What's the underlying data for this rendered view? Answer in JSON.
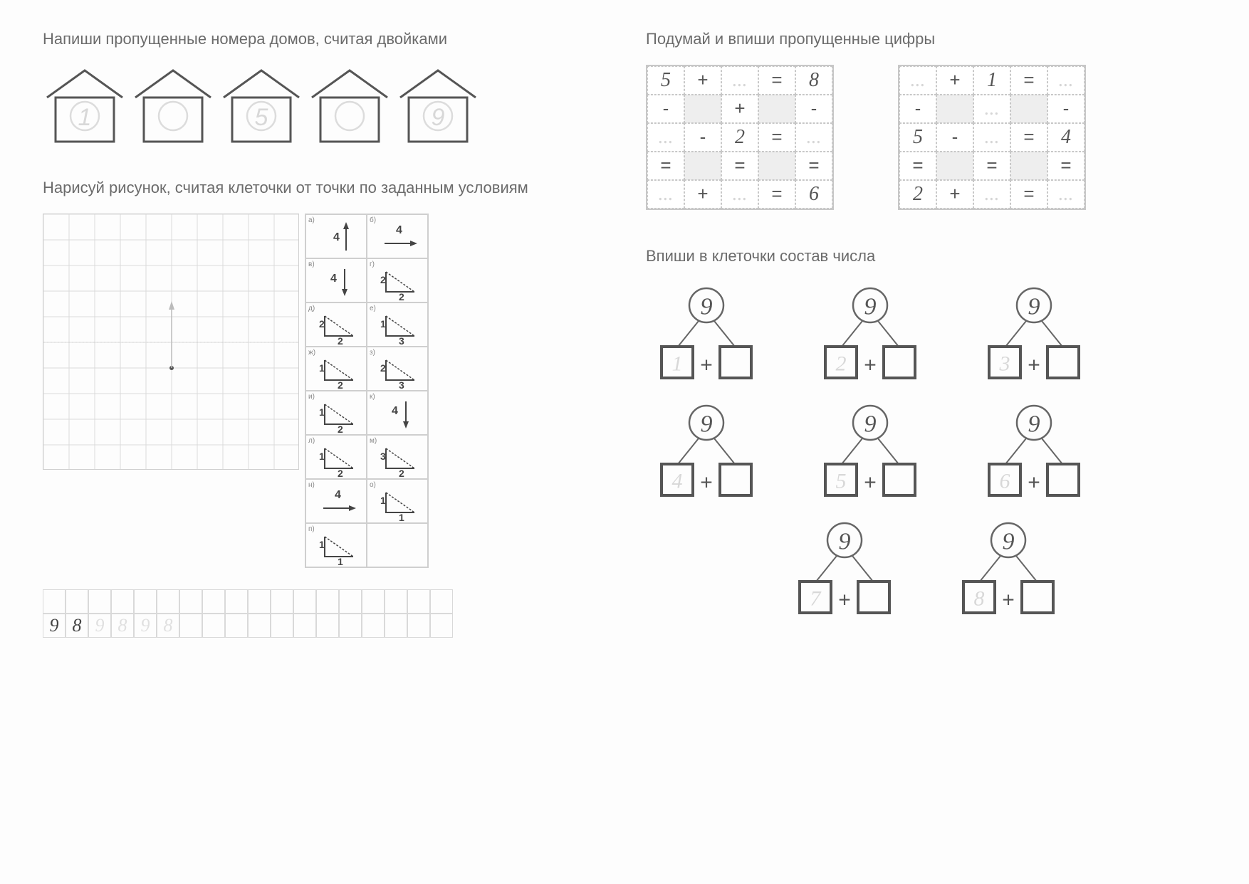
{
  "colors": {
    "text_gray": "#6b6b6b",
    "line_gray": "#777777",
    "light_line": "#cfcfcf",
    "faint_num": "#d8d8d8",
    "dark_num": "#444444",
    "cell_gray": "#eeeeee"
  },
  "left": {
    "task1_title": "Напиши пропущенные номера домов, считая двойками",
    "houses": [
      {
        "num": "1",
        "show": true
      },
      {
        "num": "",
        "show": false
      },
      {
        "num": "5",
        "show": true
      },
      {
        "num": "",
        "show": false
      },
      {
        "num": "9",
        "show": true
      }
    ],
    "task2_title": "Нарисуй рисунок, считая клеточки от точки по заданным условиям",
    "direction_cells": [
      {
        "lbl": "а)",
        "draw": "arrow_up",
        "n": "4"
      },
      {
        "lbl": "б)",
        "draw": "arrow_right",
        "n": "4"
      },
      {
        "lbl": "в)",
        "draw": "arrow_down",
        "n": "4"
      },
      {
        "lbl": "г)",
        "draw": "tri_r",
        "a": "2",
        "b": "2"
      },
      {
        "lbl": "д)",
        "draw": "tri_r",
        "a": "2",
        "b": "2"
      },
      {
        "lbl": "е)",
        "draw": "tri_r",
        "a": "1",
        "b": "3"
      },
      {
        "lbl": "ж)",
        "draw": "tri_r",
        "a": "1",
        "b": "2"
      },
      {
        "lbl": "з)",
        "draw": "tri_d",
        "a": "2",
        "b": "3"
      },
      {
        "lbl": "и)",
        "draw": "tri_r",
        "a": "1",
        "b": "2"
      },
      {
        "lbl": "к)",
        "draw": "arrow_down",
        "n": "4"
      },
      {
        "lbl": "л)",
        "draw": "tri_u",
        "a": "1",
        "b": "2"
      },
      {
        "lbl": "м)",
        "draw": "tri_r",
        "a": "3",
        "b": "2"
      },
      {
        "lbl": "н)",
        "draw": "arrow_right",
        "n": "4"
      },
      {
        "lbl": "о)",
        "draw": "tri_d",
        "a": "1",
        "b": "1"
      },
      {
        "lbl": "п)",
        "draw": "tri_r",
        "a": "1",
        "b": "1"
      },
      {
        "lbl": "",
        "draw": "none",
        "n": ""
      }
    ],
    "writing_cells": [
      "9",
      "8",
      "9",
      "8",
      "9",
      "8"
    ],
    "writing_style": [
      "dark",
      "dark",
      "light",
      "light",
      "light",
      "light"
    ]
  },
  "right": {
    "task3_title": "Подумай и впиши пропущенные цифры",
    "grid1": [
      [
        "5",
        "+",
        "",
        "=",
        "8"
      ],
      [
        "-",
        "g",
        "+",
        "g",
        "-"
      ],
      [
        "",
        "-",
        "2",
        "=",
        ""
      ],
      [
        "=",
        "g",
        "=",
        "g",
        "="
      ],
      [
        "",
        "+",
        "",
        "=",
        "6"
      ]
    ],
    "grid2": [
      [
        "",
        "+",
        "1",
        "=",
        ""
      ],
      [
        "-",
        "g",
        "",
        "g",
        "-"
      ],
      [
        "5",
        "-",
        "",
        "=",
        "4"
      ],
      [
        "=",
        "g",
        "=",
        "g",
        "="
      ],
      [
        "2",
        "+",
        "",
        "=",
        ""
      ]
    ],
    "task4_title": "Впиши в клеточки состав числа",
    "bonds_top": "9",
    "bonds_row1": [
      "1",
      "2",
      "3"
    ],
    "bonds_row2": [
      "4",
      "5",
      "6"
    ],
    "bonds_row3": [
      "7",
      "8"
    ]
  }
}
